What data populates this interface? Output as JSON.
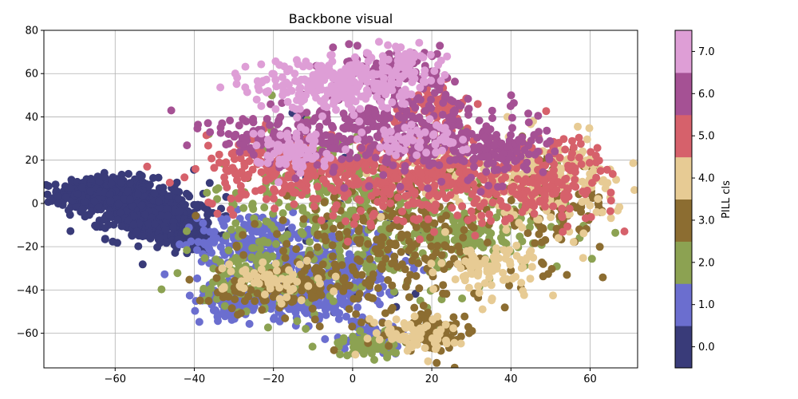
{
  "chart_data": {
    "type": "scatter",
    "title": "Backbone visual",
    "xlabel": "",
    "ylabel": "",
    "xlim": [
      -78,
      72
    ],
    "ylim": [
      -76,
      80
    ],
    "xticks": [
      -60,
      -40,
      -20,
      0,
      20,
      40,
      60
    ],
    "yticks": [
      -60,
      -40,
      -20,
      0,
      20,
      40,
      60,
      80
    ],
    "xtick_labels": [
      "−60",
      "−40",
      "−20",
      "0",
      "20",
      "40",
      "60"
    ],
    "ytick_labels": [
      "−60",
      "−40",
      "−20",
      "0",
      "20",
      "40",
      "60",
      "80"
    ],
    "grid": true,
    "colorbar": {
      "label": "PILL cls",
      "range": [
        -0.5,
        7.5
      ],
      "ticks": [
        0,
        1,
        2,
        3,
        4,
        5,
        6,
        7
      ],
      "tick_labels": [
        "0.0",
        "1.0",
        "2.0",
        "3.0",
        "4.0",
        "5.0",
        "6.0",
        "7.0"
      ],
      "colors": [
        "#393b79",
        "#6b6ecf",
        "#8ca252",
        "#8c6d31",
        "#e7cb94",
        "#d6616b",
        "#a55194",
        "#de9ed6"
      ]
    },
    "series": [
      {
        "class": 0,
        "color": "#393b79",
        "clusters": [
          {
            "cx": -62,
            "cy": 4,
            "sx": 6,
            "sy": 4,
            "n": 520
          },
          {
            "cx": -50,
            "cy": -5,
            "sx": 6,
            "sy": 6,
            "n": 380
          },
          {
            "cx": -42,
            "cy": -14,
            "sx": 4,
            "sy": 4,
            "n": 140
          },
          {
            "cx": 0,
            "cy": -10,
            "sx": 25,
            "sy": 25,
            "n": 30
          }
        ]
      },
      {
        "class": 1,
        "color": "#6b6ecf",
        "clusters": [
          {
            "cx": -25,
            "cy": -18,
            "sx": 7,
            "sy": 7,
            "n": 200
          },
          {
            "cx": -30,
            "cy": -45,
            "sx": 5,
            "sy": 4,
            "n": 120
          },
          {
            "cx": -5,
            "cy": -30,
            "sx": 8,
            "sy": 10,
            "n": 260
          },
          {
            "cx": 5,
            "cy": -62,
            "sx": 4,
            "sy": 3,
            "n": 90
          },
          {
            "cx": -12,
            "cy": -45,
            "sx": 6,
            "sy": 5,
            "n": 110
          }
        ]
      },
      {
        "class": 2,
        "color": "#8ca252",
        "clusters": [
          {
            "cx": 0,
            "cy": -5,
            "sx": 18,
            "sy": 20,
            "n": 380
          },
          {
            "cx": -25,
            "cy": -35,
            "sx": 6,
            "sy": 6,
            "n": 110
          },
          {
            "cx": 30,
            "cy": -15,
            "sx": 12,
            "sy": 8,
            "n": 150
          },
          {
            "cx": 5,
            "cy": -65,
            "sx": 6,
            "sy": 3,
            "n": 70
          }
        ]
      },
      {
        "class": 3,
        "color": "#8c6d31",
        "clusters": [
          {
            "cx": 10,
            "cy": -20,
            "sx": 18,
            "sy": 18,
            "n": 300
          },
          {
            "cx": 50,
            "cy": 0,
            "sx": 8,
            "sy": 10,
            "n": 110
          },
          {
            "cx": -20,
            "cy": -40,
            "sx": 8,
            "sy": 5,
            "n": 90
          },
          {
            "cx": 20,
            "cy": -60,
            "sx": 6,
            "sy": 4,
            "n": 70
          }
        ]
      },
      {
        "class": 4,
        "color": "#e7cb94",
        "clusters": [
          {
            "cx": 48,
            "cy": 10,
            "sx": 10,
            "sy": 10,
            "n": 190
          },
          {
            "cx": 35,
            "cy": -30,
            "sx": 6,
            "sy": 6,
            "n": 80
          },
          {
            "cx": 15,
            "cy": -60,
            "sx": 6,
            "sy": 4,
            "n": 70
          },
          {
            "cx": -20,
            "cy": -35,
            "sx": 6,
            "sy": 5,
            "n": 60
          },
          {
            "cx": 20,
            "cy": 15,
            "sx": 10,
            "sy": 8,
            "n": 70
          }
        ]
      },
      {
        "class": 5,
        "color": "#d6616b",
        "clusters": [
          {
            "cx": 20,
            "cy": 10,
            "sx": 15,
            "sy": 10,
            "n": 320
          },
          {
            "cx": -15,
            "cy": 15,
            "sx": 12,
            "sy": 8,
            "n": 220
          },
          {
            "cx": 50,
            "cy": 12,
            "sx": 8,
            "sy": 10,
            "n": 120
          },
          {
            "cx": 20,
            "cy": 45,
            "sx": 5,
            "sy": 5,
            "n": 60
          }
        ]
      },
      {
        "class": 6,
        "color": "#a55194",
        "clusters": [
          {
            "cx": 10,
            "cy": 35,
            "sx": 14,
            "sy": 10,
            "n": 320
          },
          {
            "cx": 35,
            "cy": 25,
            "sx": 7,
            "sy": 6,
            "n": 120
          },
          {
            "cx": 10,
            "cy": 62,
            "sx": 6,
            "sy": 5,
            "n": 110
          },
          {
            "cx": -20,
            "cy": 30,
            "sx": 8,
            "sy": 6,
            "n": 90
          }
        ]
      },
      {
        "class": 7,
        "color": "#de9ed6",
        "clusters": [
          {
            "cx": -5,
            "cy": 55,
            "sx": 10,
            "sy": 6,
            "n": 260
          },
          {
            "cx": 12,
            "cy": 65,
            "sx": 4,
            "sy": 4,
            "n": 70
          },
          {
            "cx": -15,
            "cy": 25,
            "sx": 5,
            "sy": 5,
            "n": 80
          },
          {
            "cx": 15,
            "cy": 30,
            "sx": 6,
            "sy": 4,
            "n": 60
          }
        ]
      }
    ]
  }
}
